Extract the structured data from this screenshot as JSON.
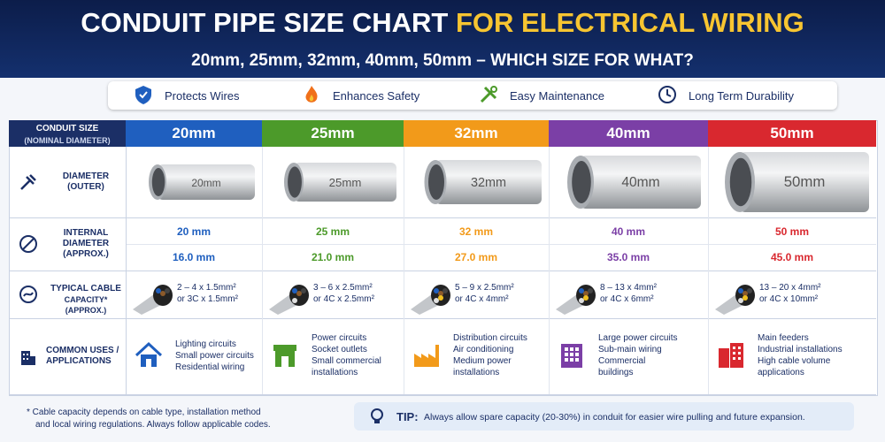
{
  "header": {
    "title_main": "CONDUIT PIPE SIZE CHART",
    "title_highlight": "FOR ELECTRICAL WIRING",
    "subtitle": "20mm, 25mm, 32mm, 40mm, 50mm – WHICH SIZE FOR WHAT?"
  },
  "features": [
    "Protects Wires",
    "Enhances Safety",
    "Easy Maintenance",
    "Long Term Durability"
  ],
  "table": {
    "corner": [
      "CONDUIT SIZE",
      "(NOMINAL DIAMETER)"
    ],
    "row_labels": [
      [
        "DIAMETER",
        "(OUTER)"
      ],
      [
        "INTERNAL",
        "DIAMETER",
        "(APPROX.)"
      ],
      [
        "TYPICAL CABLE",
        "CAPACITY* (APPROX.)"
      ],
      [
        "COMMON USES /",
        "APPLICATIONS"
      ]
    ],
    "columns": [
      {
        "size": "20mm",
        "color": "#1f5fbf",
        "pipe_label": "20mm",
        "outer": "20 mm",
        "internal": "16.0 mm",
        "capacity": [
          "2 – 4 x 1.5mm²",
          "or 3C x 1.5mm²"
        ],
        "uses": [
          "Lighting circuits",
          "Small power circuits",
          "Residential wiring"
        ]
      },
      {
        "size": "25mm",
        "color": "#4c9a2a",
        "pipe_label": "25mm",
        "outer": "25 mm",
        "internal": "21.0 mm",
        "capacity": [
          "3 – 6 x 2.5mm²",
          "or 4C x 2.5mm²"
        ],
        "uses": [
          "Power circuits",
          "Socket outlets",
          "Small commercial",
          "installations"
        ]
      },
      {
        "size": "32mm",
        "color": "#f29a1a",
        "pipe_label": "32mm",
        "outer": "32 mm",
        "internal": "27.0 mm",
        "capacity": [
          "5 – 9 x 2.5mm²",
          "or 4C x 4mm²"
        ],
        "uses": [
          "Distribution circuits",
          "Air conditioning",
          "Medium power",
          "installations"
        ]
      },
      {
        "size": "40mm",
        "color": "#7b3fa6",
        "pipe_label": "40mm",
        "outer": "40 mm",
        "internal": "35.0 mm",
        "capacity": [
          "8 – 13 x 4mm²",
          "or 4C x 6mm²"
        ],
        "uses": [
          "Large power circuits",
          "Sub-main wiring",
          "Commercial",
          "buildings"
        ]
      },
      {
        "size": "50mm",
        "color": "#d9282f",
        "pipe_label": "50mm",
        "outer": "50 mm",
        "internal": "45.0 mm",
        "capacity": [
          "13 – 20 x 4mm²",
          "or 4C x 10mm²"
        ],
        "uses": [
          "Main feeders",
          "Industrial installations",
          "High cable volume",
          "applications"
        ]
      }
    ]
  },
  "footnote": [
    "*  Cable capacity depends on cable type, installation method",
    "and local wiring regulations. Always follow applicable codes."
  ],
  "tip": {
    "label": "TIP:",
    "text": "Always allow spare capacity (20-30%) in conduit for easier wire pulling and future expansion."
  }
}
